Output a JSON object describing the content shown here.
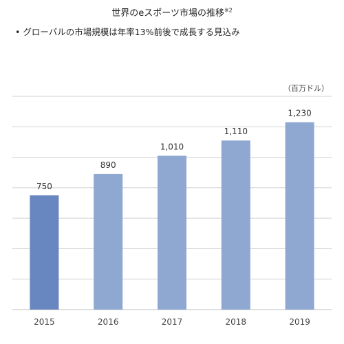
{
  "title": "世界のeスポーツ市場の推移",
  "title_note": "※2",
  "bullet": "• グローバルの市場規模は年率13%前後で成長する見込み",
  "unit": "（百万ドル）",
  "colors": {
    "first_bar": "#6886bf",
    "bars": "#8fa8d1",
    "grid": "#d0d0d0",
    "axis": "#bfbfbf"
  },
  "chart_data": {
    "type": "bar",
    "categories": [
      "2015",
      "2016",
      "2017",
      "2018",
      "2019"
    ],
    "values": [
      750,
      890,
      1010,
      1110,
      1230
    ],
    "value_labels": [
      "750",
      "890",
      "1,010",
      "1,110",
      "1,230"
    ],
    "ylim": [
      0,
      1400
    ],
    "grid": true
  }
}
